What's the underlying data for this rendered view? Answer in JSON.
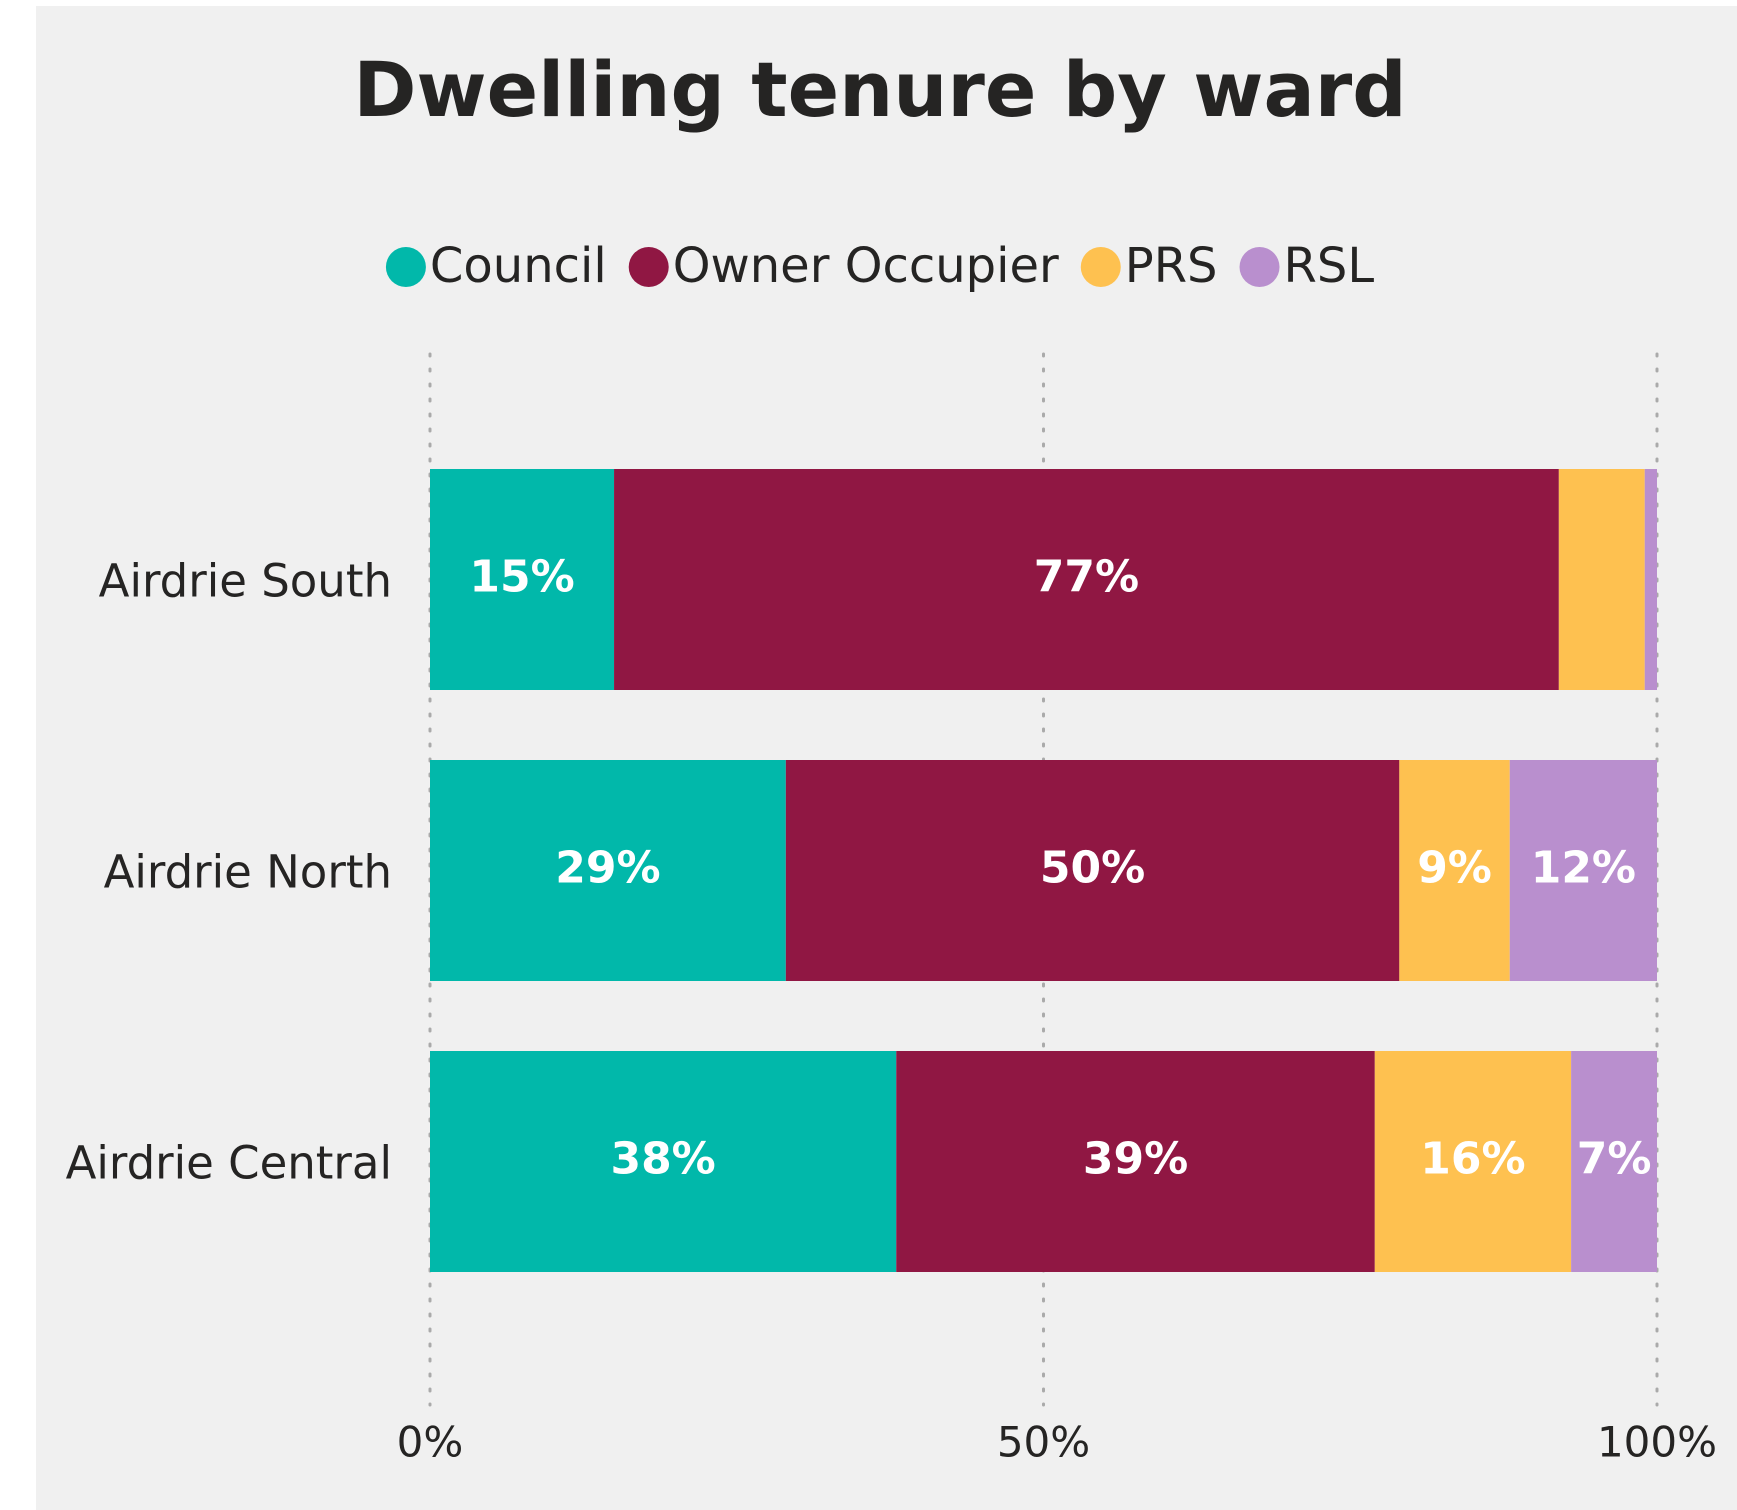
{
  "chart_data": {
    "type": "stacked_bar_horizontal",
    "title": "Dwelling tenure by ward",
    "categories": [
      "Airdrie South",
      "Airdrie North",
      "Airdrie Central"
    ],
    "series": [
      {
        "name": "Council",
        "color": "#01b8aa",
        "values": [
          15,
          29,
          38
        ],
        "value_labels": [
          "15%",
          "29%",
          "38%"
        ]
      },
      {
        "name": "Owner Occupier",
        "color": "#901743",
        "values": [
          77,
          50,
          39
        ],
        "value_labels": [
          "77%",
          "50%",
          "39%"
        ]
      },
      {
        "name": "PRS",
        "color": "#fec150",
        "values": [
          7,
          9,
          16
        ],
        "value_labels": [
          null,
          "9%",
          "16%"
        ]
      },
      {
        "name": "RSL",
        "color": "#b98fce",
        "values": [
          1,
          12,
          7
        ],
        "value_labels": [
          null,
          "12%",
          "7%"
        ]
      }
    ],
    "xlim": [
      0,
      100
    ],
    "xticks": [
      {
        "value": 0,
        "label": "0%"
      },
      {
        "value": 50,
        "label": "50%"
      },
      {
        "value": 100,
        "label": "100%"
      }
    ],
    "grid": true,
    "legend": "top"
  }
}
